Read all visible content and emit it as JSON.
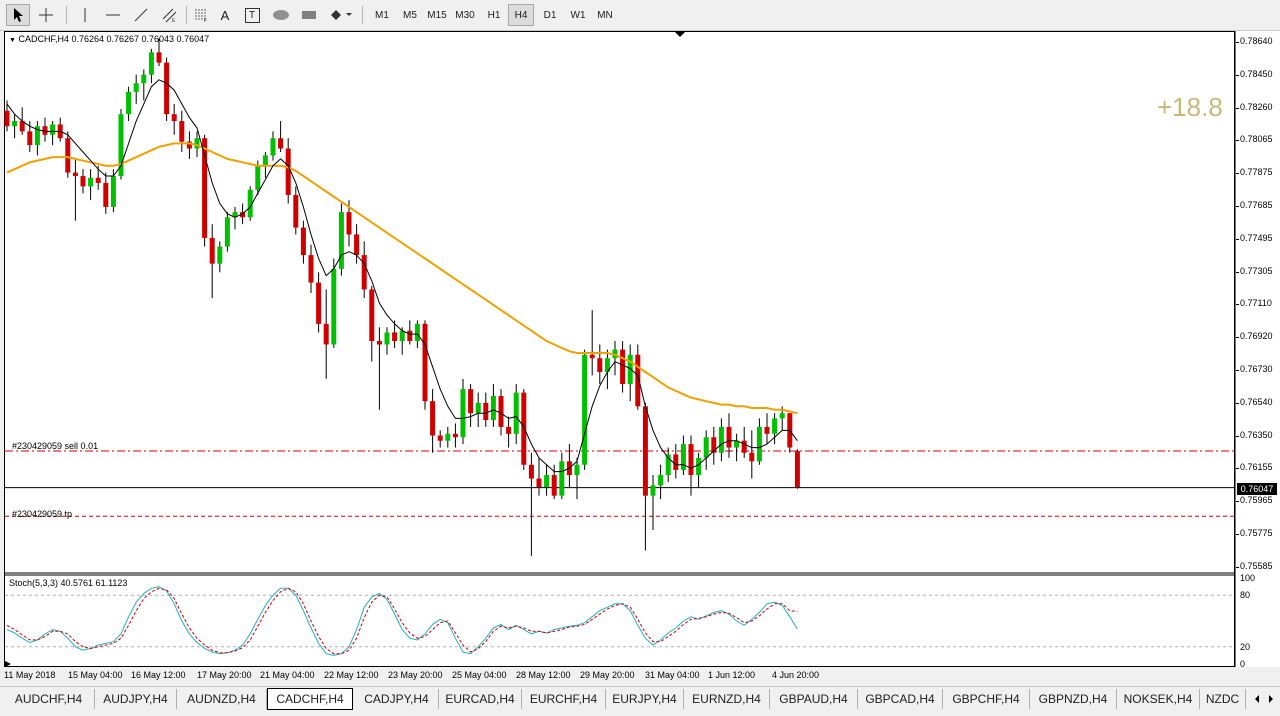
{
  "toolbar": {
    "tools": [
      "cursor-icon",
      "crosshair-icon",
      "vertical-line-icon",
      "horizontal-line-icon",
      "trendline-icon",
      "equidistant-channel-icon",
      "fibonacci-icon",
      "text-icon",
      "text-label-icon",
      "ellipse-icon",
      "rectangle-icon",
      "arrows-icon"
    ],
    "text_tool_label": "A",
    "text_label_tool_label": "T",
    "timeframes": [
      "M1",
      "M5",
      "M15",
      "M30",
      "H1",
      "H4",
      "D1",
      "W1",
      "MN"
    ],
    "active_timeframe": "H4"
  },
  "chart": {
    "symbol_info": "CADCHF,H4  0.76264 0.76267 0.76043 0.76047",
    "profit": "+18.8",
    "sell_order_label": "#230429059 sell 0.01",
    "tp_label": "#230429059 tp",
    "current_price": "0.76047",
    "price_labels": [
      "0.78640",
      "0.78450",
      "0.78260",
      "0.78065",
      "0.77875",
      "0.77685",
      "0.77495",
      "0.77305",
      "0.77110",
      "0.76920",
      "0.76730",
      "0.76540",
      "0.76350",
      "0.76155",
      "0.75965",
      "0.75775",
      "0.75585"
    ],
    "time_labels": [
      "11 May 2018",
      "15 May 04:00",
      "16 May 12:00",
      "17 May 20:00",
      "21 May 04:00",
      "22 May 12:00",
      "23 May 20:00",
      "25 May 04:00",
      "28 May 12:00",
      "29 May 20:00",
      "31 May 04:00",
      "1 Jun 12:00",
      "4 Jun 20:00"
    ],
    "oscillator_label": "Stoch(5,3,3) 40.5761 61.1123",
    "osc_levels": [
      "100",
      "80",
      "20",
      "0"
    ],
    "colors": {
      "bull": "#00c000",
      "bear": "#d00000",
      "ma_slow": "#f0a000",
      "ma_fast": "#000000",
      "stoch_main": "#20b0c0",
      "stoch_signal": "#d00000",
      "order_line": "#d00000",
      "profit": "#c9b87a"
    }
  },
  "chart_data": {
    "type": "candlestick",
    "symbol": "CADCHF",
    "timeframe": "H4",
    "ylim": [
      0.75585,
      0.7874
    ],
    "candles": [
      [
        0.7824,
        0.783,
        0.7812,
        0.7815
      ],
      [
        0.7815,
        0.7822,
        0.7808,
        0.7818
      ],
      [
        0.7818,
        0.7826,
        0.781,
        0.7812
      ],
      [
        0.7812,
        0.7818,
        0.78,
        0.7804
      ],
      [
        0.7804,
        0.7818,
        0.7798,
        0.7815
      ],
      [
        0.7815,
        0.782,
        0.7806,
        0.781
      ],
      [
        0.781,
        0.7818,
        0.7804,
        0.7816
      ],
      [
        0.7816,
        0.782,
        0.7806,
        0.7808
      ],
      [
        0.7808,
        0.7812,
        0.7785,
        0.7788
      ],
      [
        0.7788,
        0.7796,
        0.776,
        0.7786
      ],
      [
        0.7786,
        0.779,
        0.7776,
        0.778
      ],
      [
        0.778,
        0.779,
        0.7772,
        0.7785
      ],
      [
        0.7785,
        0.7792,
        0.7778,
        0.7782
      ],
      [
        0.7782,
        0.7788,
        0.7764,
        0.7768
      ],
      [
        0.7768,
        0.779,
        0.7765,
        0.7786
      ],
      [
        0.7786,
        0.7825,
        0.7784,
        0.7822
      ],
      [
        0.7822,
        0.7838,
        0.7818,
        0.7835
      ],
      [
        0.7835,
        0.7845,
        0.7828,
        0.784
      ],
      [
        0.784,
        0.7848,
        0.783,
        0.7845
      ],
      [
        0.7845,
        0.786,
        0.784,
        0.7858
      ],
      [
        0.7858,
        0.7866,
        0.785,
        0.7852
      ],
      [
        0.7852,
        0.7855,
        0.7818,
        0.7822
      ],
      [
        0.7822,
        0.7828,
        0.781,
        0.7818
      ],
      [
        0.7818,
        0.7824,
        0.78,
        0.7806
      ],
      [
        0.7806,
        0.7812,
        0.7796,
        0.7802
      ],
      [
        0.7802,
        0.7812,
        0.7797,
        0.7808
      ],
      [
        0.7808,
        0.781,
        0.7745,
        0.775
      ],
      [
        0.775,
        0.7758,
        0.7715,
        0.7735
      ],
      [
        0.7735,
        0.7748,
        0.773,
        0.7745
      ],
      [
        0.7745,
        0.7765,
        0.7742,
        0.7762
      ],
      [
        0.7762,
        0.7768,
        0.7755,
        0.7765
      ],
      [
        0.7765,
        0.777,
        0.7758,
        0.7762
      ],
      [
        0.7762,
        0.778,
        0.776,
        0.7778
      ],
      [
        0.7778,
        0.7795,
        0.7775,
        0.7792
      ],
      [
        0.7792,
        0.78,
        0.7785,
        0.7798
      ],
      [
        0.7798,
        0.7812,
        0.7795,
        0.7808
      ],
      [
        0.7808,
        0.7818,
        0.78,
        0.7802
      ],
      [
        0.7802,
        0.7808,
        0.777,
        0.7775
      ],
      [
        0.7775,
        0.778,
        0.7752,
        0.7756
      ],
      [
        0.7756,
        0.776,
        0.7735,
        0.774
      ],
      [
        0.774,
        0.7746,
        0.7718,
        0.7724
      ],
      [
        0.7724,
        0.773,
        0.7695,
        0.77
      ],
      [
        0.77,
        0.772,
        0.7668,
        0.7688
      ],
      [
        0.7688,
        0.7738,
        0.7686,
        0.7732
      ],
      [
        0.7732,
        0.777,
        0.7728,
        0.7765
      ],
      [
        0.7765,
        0.7772,
        0.7745,
        0.7752
      ],
      [
        0.7752,
        0.7758,
        0.7735,
        0.774
      ],
      [
        0.774,
        0.7748,
        0.7715,
        0.772
      ],
      [
        0.772,
        0.7722,
        0.7678,
        0.769
      ],
      [
        0.769,
        0.7698,
        0.765,
        0.7688
      ],
      [
        0.7688,
        0.7698,
        0.7682,
        0.7695
      ],
      [
        0.7695,
        0.7702,
        0.7686,
        0.769
      ],
      [
        0.769,
        0.7698,
        0.7682,
        0.7696
      ],
      [
        0.7696,
        0.7702,
        0.7688,
        0.769
      ],
      [
        0.769,
        0.7702,
        0.7686,
        0.77
      ],
      [
        0.77,
        0.7702,
        0.765,
        0.7655
      ],
      [
        0.7655,
        0.7662,
        0.7625,
        0.7635
      ],
      [
        0.7635,
        0.7638,
        0.7628,
        0.7632
      ],
      [
        0.7632,
        0.764,
        0.7628,
        0.7636
      ],
      [
        0.7636,
        0.7642,
        0.7628,
        0.7634
      ],
      [
        0.7634,
        0.7668,
        0.763,
        0.7662
      ],
      [
        0.7662,
        0.7665,
        0.764,
        0.7648
      ],
      [
        0.7648,
        0.766,
        0.764,
        0.7654
      ],
      [
        0.7654,
        0.766,
        0.764,
        0.7644
      ],
      [
        0.7644,
        0.7665,
        0.764,
        0.7658
      ],
      [
        0.7658,
        0.7662,
        0.7635,
        0.764
      ],
      [
        0.764,
        0.7646,
        0.7628,
        0.7636
      ],
      [
        0.7636,
        0.7665,
        0.763,
        0.766
      ],
      [
        0.766,
        0.7662,
        0.7615,
        0.7618
      ],
      [
        0.7618,
        0.7625,
        0.7565,
        0.761
      ],
      [
        0.761,
        0.7622,
        0.76,
        0.7605
      ],
      [
        0.7605,
        0.7618,
        0.76,
        0.7612
      ],
      [
        0.7612,
        0.7618,
        0.7598,
        0.76
      ],
      [
        0.76,
        0.7625,
        0.7598,
        0.762
      ],
      [
        0.762,
        0.763,
        0.7605,
        0.7612
      ],
      [
        0.7612,
        0.7622,
        0.7598,
        0.7618
      ],
      [
        0.7618,
        0.7685,
        0.7615,
        0.7682
      ],
      [
        0.7682,
        0.7708,
        0.767,
        0.768
      ],
      [
        0.768,
        0.7688,
        0.7665,
        0.7672
      ],
      [
        0.7672,
        0.7685,
        0.7662,
        0.768
      ],
      [
        0.768,
        0.769,
        0.767,
        0.7685
      ],
      [
        0.7685,
        0.769,
        0.766,
        0.7665
      ],
      [
        0.7665,
        0.7688,
        0.7655,
        0.7682
      ],
      [
        0.7682,
        0.7688,
        0.765,
        0.7652
      ],
      [
        0.7652,
        0.7654,
        0.7568,
        0.76
      ],
      [
        0.76,
        0.7612,
        0.758,
        0.7606
      ],
      [
        0.7606,
        0.7618,
        0.7598,
        0.7612
      ],
      [
        0.7612,
        0.7628,
        0.7608,
        0.7624
      ],
      [
        0.7624,
        0.763,
        0.761,
        0.7615
      ],
      [
        0.7615,
        0.7635,
        0.7612,
        0.763
      ],
      [
        0.763,
        0.7635,
        0.76,
        0.7612
      ],
      [
        0.7612,
        0.7625,
        0.7605,
        0.7622
      ],
      [
        0.7622,
        0.7638,
        0.7615,
        0.7634
      ],
      [
        0.7634,
        0.764,
        0.7618,
        0.7625
      ],
      [
        0.7625,
        0.7645,
        0.762,
        0.764
      ],
      [
        0.764,
        0.7648,
        0.7622,
        0.7628
      ],
      [
        0.7628,
        0.7636,
        0.762,
        0.7632
      ],
      [
        0.7632,
        0.764,
        0.7622,
        0.7625
      ],
      [
        0.7625,
        0.7638,
        0.761,
        0.762
      ],
      [
        0.762,
        0.7645,
        0.7618,
        0.764
      ],
      [
        0.764,
        0.7648,
        0.763,
        0.7636
      ],
      [
        0.7636,
        0.7648,
        0.763,
        0.7645
      ],
      [
        0.7645,
        0.7652,
        0.7638,
        0.7648
      ],
      [
        0.7648,
        0.7648,
        0.7625,
        0.7628
      ],
      [
        0.7626,
        0.7627,
        0.7604,
        0.7605
      ]
    ],
    "ma_fast": [
      0.7828,
      0.7822,
      0.7818,
      0.7815,
      0.7813,
      0.7812,
      0.7812,
      0.7812,
      0.781,
      0.7805,
      0.78,
      0.7795,
      0.779,
      0.7786,
      0.7786,
      0.7792,
      0.7805,
      0.7818,
      0.7828,
      0.7838,
      0.7842,
      0.784,
      0.7836,
      0.7828,
      0.782,
      0.7814,
      0.7798,
      0.7782,
      0.777,
      0.7764,
      0.7762,
      0.7764,
      0.7768,
      0.7776,
      0.7784,
      0.7792,
      0.7796,
      0.7792,
      0.7782,
      0.7768,
      0.7752,
      0.7738,
      0.7728,
      0.7732,
      0.774,
      0.7742,
      0.774,
      0.7735,
      0.7725,
      0.7712,
      0.7705,
      0.77,
      0.7696,
      0.7694,
      0.7694,
      0.7688,
      0.7675,
      0.7662,
      0.7652,
      0.7645,
      0.7645,
      0.7646,
      0.7648,
      0.7648,
      0.765,
      0.7648,
      0.7645,
      0.7646,
      0.764,
      0.763,
      0.7622,
      0.7618,
      0.7614,
      0.7614,
      0.7616,
      0.762,
      0.7636,
      0.7652,
      0.7664,
      0.7672,
      0.7678,
      0.7676,
      0.7674,
      0.767,
      0.7652,
      0.7638,
      0.7628,
      0.7622,
      0.7618,
      0.7618,
      0.7616,
      0.7618,
      0.7622,
      0.7626,
      0.763,
      0.7632,
      0.7632,
      0.763,
      0.7628,
      0.7628,
      0.763,
      0.7634,
      0.7638,
      0.7638,
      0.7632
    ],
    "ma_slow": [
      0.7788,
      0.779,
      0.7792,
      0.7794,
      0.7795,
      0.7796,
      0.7797,
      0.7797,
      0.7797,
      0.7796,
      0.7795,
      0.7794,
      0.7793,
      0.7792,
      0.7792,
      0.7793,
      0.7795,
      0.7797,
      0.7799,
      0.7801,
      0.7803,
      0.7804,
      0.7805,
      0.7805,
      0.7805,
      0.7804,
      0.7802,
      0.78,
      0.7798,
      0.7796,
      0.7795,
      0.7794,
      0.7793,
      0.7792,
      0.7792,
      0.7792,
      0.7792,
      0.7791,
      0.7789,
      0.7786,
      0.7783,
      0.778,
      0.7777,
      0.7774,
      0.7771,
      0.7768,
      0.7765,
      0.7762,
      0.7759,
      0.7756,
      0.7753,
      0.775,
      0.7747,
      0.7744,
      0.7741,
      0.7738,
      0.7735,
      0.7732,
      0.7729,
      0.7726,
      0.7723,
      0.772,
      0.7717,
      0.7714,
      0.7711,
      0.7708,
      0.7705,
      0.7702,
      0.7699,
      0.7696,
      0.7693,
      0.769,
      0.7688,
      0.7686,
      0.7684,
      0.7683,
      0.7683,
      0.7683,
      0.7683,
      0.7683,
      0.7682,
      0.768,
      0.7678,
      0.7675,
      0.7672,
      0.7669,
      0.7666,
      0.7663,
      0.7661,
      0.7659,
      0.7657,
      0.7656,
      0.7655,
      0.7654,
      0.7653,
      0.7653,
      0.7652,
      0.7652,
      0.7651,
      0.7651,
      0.7651,
      0.765,
      0.765,
      0.7649,
      0.7648
    ],
    "stoch_main": [
      40,
      36,
      30,
      25,
      28,
      35,
      40,
      38,
      30,
      20,
      16,
      18,
      22,
      24,
      26,
      35,
      55,
      72,
      82,
      88,
      90,
      85,
      70,
      50,
      35,
      25,
      18,
      14,
      12,
      13,
      16,
      22,
      35,
      52,
      68,
      80,
      88,
      88,
      80,
      62,
      42,
      24,
      12,
      10,
      12,
      20,
      40,
      66,
      78,
      82,
      75,
      58,
      40,
      30,
      28,
      35,
      46,
      52,
      48,
      30,
      14,
      12,
      20,
      30,
      42,
      46,
      40,
      45,
      40,
      35,
      38,
      36,
      40,
      42,
      44,
      45,
      48,
      55,
      62,
      66,
      70,
      70,
      62,
      45,
      30,
      22,
      28,
      36,
      42,
      50,
      55,
      52,
      56,
      60,
      62,
      58,
      50,
      45,
      52,
      60,
      70,
      72,
      68,
      55,
      40.58
    ],
    "stoch_signal": [
      45,
      40,
      34,
      28,
      28,
      32,
      38,
      38,
      35,
      26,
      20,
      18,
      20,
      22,
      24,
      30,
      45,
      62,
      76,
      84,
      88,
      86,
      76,
      58,
      42,
      30,
      22,
      16,
      13,
      13,
      15,
      19,
      28,
      44,
      60,
      74,
      84,
      88,
      84,
      70,
      50,
      32,
      18,
      12,
      12,
      16,
      30,
      54,
      72,
      80,
      78,
      64,
      48,
      36,
      30,
      32,
      40,
      48,
      50,
      36,
      22,
      14,
      18,
      26,
      38,
      44,
      42,
      44,
      42,
      38,
      38,
      36,
      38,
      40,
      43,
      44,
      46,
      52,
      58,
      64,
      68,
      70,
      66,
      52,
      36,
      26,
      26,
      32,
      38,
      46,
      52,
      53,
      55,
      58,
      60,
      59,
      54,
      48,
      50,
      56,
      64,
      70,
      70,
      62,
      61.11
    ]
  },
  "tabs": {
    "items": [
      "AUDCHF,H4",
      "AUDJPY,H4",
      "AUDNZD,H4",
      "CADCHF,H4",
      "CADJPY,H4",
      "EURCAD,H4",
      "EURCHF,H4",
      "EURJPY,H4",
      "EURNZD,H4",
      "GBPAUD,H4",
      "GBPCAD,H4",
      "GBPCHF,H4",
      "GBPNZD,H4",
      "NOKSEK,H4",
      "NZDC"
    ],
    "active": "CADCHF,H4"
  }
}
